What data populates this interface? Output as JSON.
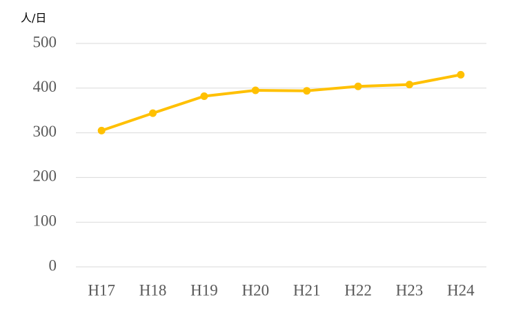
{
  "chart_data": {
    "type": "line",
    "y_axis_label": "人/日",
    "categories": [
      "H17",
      "H18",
      "H19",
      "H20",
      "H21",
      "H22",
      "H23",
      "H24"
    ],
    "series": [
      {
        "color": "#ffc000",
        "values": [
          305,
          344,
          382,
          395,
          394,
          404,
          408,
          430
        ]
      }
    ],
    "ylim": [
      0,
      500
    ],
    "yticks": [
      0,
      100,
      200,
      300,
      400,
      500
    ],
    "grid": true
  }
}
